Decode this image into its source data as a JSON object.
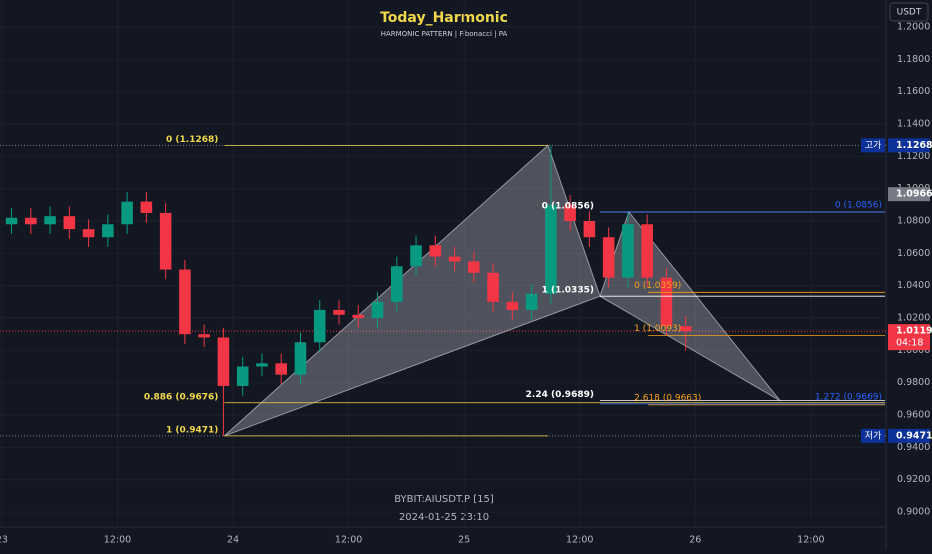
{
  "chart_data": {
    "type": "candlestick",
    "title": "Today_Harmonic",
    "subtitle": "HARMONIC PATTERN | Fibonacci | PA",
    "symbol": "BYBIT:AIUSDT.P  [15]",
    "timestamp": "2024-01-25  23:10",
    "currency": "USDT",
    "xlim": [
      -0.2,
      91.8
    ],
    "ylim": [
      0.892,
      1.2167
    ],
    "xticks": [
      {
        "value": 0,
        "label": "23"
      },
      {
        "value": 12,
        "label": "12:00"
      },
      {
        "value": 24,
        "label": "24"
      },
      {
        "value": 36,
        "label": "12:00"
      },
      {
        "value": 48,
        "label": "25"
      },
      {
        "value": 60,
        "label": "12:00"
      },
      {
        "value": 72,
        "label": "26"
      },
      {
        "value": 84,
        "label": "12:00"
      }
    ],
    "yticks": [
      {
        "value": 0.9,
        "label": "0.9000"
      },
      {
        "value": 0.92,
        "label": "0.9200"
      },
      {
        "value": 0.94,
        "label": "0.9400"
      },
      {
        "value": 0.96,
        "label": "0.9600"
      },
      {
        "value": 0.98,
        "label": "0.9800"
      },
      {
        "value": 1,
        "label": "1.0000"
      },
      {
        "value": 1.02,
        "label": "1.0200"
      },
      {
        "value": 1.04,
        "label": "1.0400"
      },
      {
        "value": 1.06,
        "label": "1.0600"
      },
      {
        "value": 1.08,
        "label": "1.0800"
      },
      {
        "value": 1.1,
        "label": "1.1000"
      },
      {
        "value": 1.12,
        "label": "1.1200"
      },
      {
        "value": 1.14,
        "label": "1.1400"
      },
      {
        "value": 1.16,
        "label": "1.1600"
      },
      {
        "value": 1.18,
        "label": "1.1800"
      },
      {
        "value": 1.2,
        "label": "1.2000"
      }
    ],
    "grid": true,
    "up_color": "#089981",
    "down_color": "#f23645",
    "candles": {
      "x": [
        1,
        3,
        5,
        7,
        9,
        11,
        13,
        15,
        17,
        19,
        21,
        23,
        25,
        27,
        29,
        31,
        33,
        35,
        37,
        39,
        41,
        43,
        45,
        47,
        49,
        51,
        53,
        55,
        57,
        59,
        61,
        63,
        65,
        67,
        69,
        71
      ],
      "open": [
        1.078,
        1.082,
        1.078,
        1.083,
        1.075,
        1.07,
        1.078,
        1.092,
        1.085,
        1.05,
        1.01,
        1.008,
        0.978,
        0.99,
        0.992,
        0.985,
        1.005,
        1.025,
        1.022,
        1.02,
        1.03,
        1.052,
        1.065,
        1.058,
        1.055,
        1.048,
        1.03,
        1.025,
        1.035,
        1.09,
        1.08,
        1.07,
        1.045,
        1.078,
        1.045,
        1.015
      ],
      "high": [
        1.088,
        1.088,
        1.089,
        1.089,
        1.081,
        1.084,
        1.098,
        1.098,
        1.091,
        1.056,
        1.016,
        1.014,
        0.996,
        0.998,
        0.998,
        1.011,
        1.031,
        1.031,
        1.028,
        1.036,
        1.058,
        1.071,
        1.071,
        1.064,
        1.061,
        1.054,
        1.036,
        1.041,
        1.1268,
        1.096,
        1.086,
        1.076,
        1.0856,
        1.084,
        1.051,
        1.021
      ],
      "low": [
        1.072,
        1.072,
        1.072,
        1.069,
        1.064,
        1.064,
        1.072,
        1.079,
        1.044,
        1.004,
        1.002,
        0.9471,
        0.972,
        0.984,
        0.979,
        0.979,
        0.999,
        1.016,
        1.014,
        1.014,
        1.024,
        1.046,
        1.052,
        1.049,
        1.042,
        1.024,
        1.019,
        1.019,
        1.029,
        1.074,
        1.064,
        1.039,
        1.039,
        1.039,
        1.009,
        1.0
      ],
      "close": [
        1.082,
        1.078,
        1.083,
        1.075,
        1.07,
        1.078,
        1.092,
        1.085,
        1.05,
        1.01,
        1.008,
        0.978,
        0.99,
        0.992,
        0.985,
        1.005,
        1.025,
        1.022,
        1.02,
        1.03,
        1.052,
        1.065,
        1.058,
        1.055,
        1.048,
        1.03,
        1.025,
        1.035,
        1.09,
        1.08,
        1.07,
        1.045,
        1.078,
        1.045,
        1.015,
        1.0119
      ]
    },
    "patterns": [
      {
        "x": [
          23.1,
          56.7,
          62.1
        ],
        "y": [
          0.9471,
          1.1268,
          1.0335
        ]
      },
      {
        "x": [
          62.1,
          65.1,
          80.8
        ],
        "y": [
          1.0335,
          1.0856,
          0.9689
        ]
      }
    ],
    "levels": [
      {
        "label": "0 (1.1268)",
        "value": 1.1268,
        "x": [
          23.1,
          56.7
        ],
        "color": "#f0d74c"
      },
      {
        "label": "0.886 (0.9676)",
        "value": 0.9676,
        "x": [
          23.1,
          91.7
        ],
        "color": "#f0d74c"
      },
      {
        "label": "1 (0.9471)",
        "value": 0.9471,
        "x": [
          23.1,
          56.7
        ],
        "color": "#f0d74c"
      },
      {
        "label": "0 (1.0856)",
        "value": 1.0856,
        "x": [
          62.1,
          91.7
        ],
        "color": "#ffffff"
      },
      {
        "label": "1 (1.0335)",
        "value": 1.0335,
        "x": [
          62.1,
          91.7
        ],
        "color": "#ffffff"
      },
      {
        "label": "2.24 (0.9689)",
        "value": 0.9689,
        "x": [
          62.1,
          91.7
        ],
        "color": "#ffffff"
      },
      {
        "label": "0 (1.0359)",
        "value": 1.0359,
        "x": [
          67.1,
          91.7
        ],
        "color": "#f7a21b"
      },
      {
        "label": "1 (1.0093)",
        "value": 1.0093,
        "x": [
          67.1,
          91.7
        ],
        "color": "#f7a21b"
      },
      {
        "label": "2.618 (0.9663)",
        "value": 0.9663,
        "x": [
          67.1,
          91.7
        ],
        "color": "#f7a21b"
      },
      {
        "label": "0 (1.0856)",
        "value": 1.0856,
        "x": [
          62.1,
          91.7
        ],
        "color": "#2962ff"
      },
      {
        "label": "1.272 (0.9669)",
        "value": 0.9669,
        "x": [
          62.1,
          91.7
        ],
        "color": "#2962ff"
      }
    ],
    "price_markers": [
      {
        "label": "고가",
        "value": 1.1268,
        "color": "#0c3299",
        "line": true
      },
      {
        "value": 1.0966,
        "color": "#787b86",
        "line": false
      },
      {
        "value": 1.0119,
        "countdown": "04:18",
        "color": "#f23645",
        "line": true
      },
      {
        "label": "저가",
        "value": 0.9471,
        "color": "#0c3299",
        "line": true
      }
    ]
  }
}
